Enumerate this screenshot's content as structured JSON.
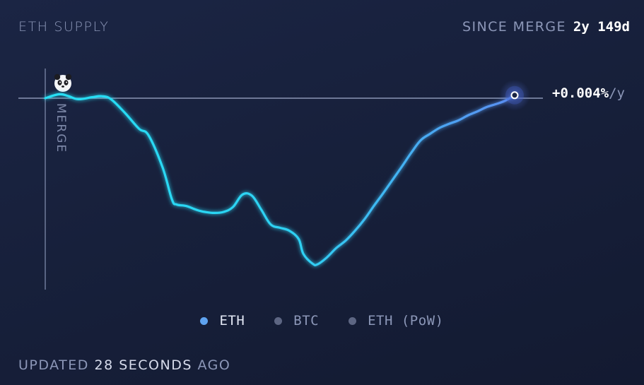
{
  "header": {
    "title": "ETH SUPPLY",
    "since_label": "SINCE MERGE",
    "since_value": "2y 149d"
  },
  "merge_label": "MERGE",
  "merge_icon": "panda-icon",
  "current_rate": "+0.004%",
  "current_rate_unit": "/y",
  "legend": [
    {
      "label": "ETH",
      "color": "#5fa3f0",
      "active": true
    },
    {
      "label": "BTC",
      "color": "#5d6683",
      "active": false
    },
    {
      "label": "ETH (PoW)",
      "color": "#5d6683",
      "active": false
    }
  ],
  "footer": {
    "updated_prefix": "UPDATED",
    "updated_value": "28 SECONDS",
    "updated_suffix": "AGO"
  },
  "colors": {
    "line_start": "#25e0f5",
    "line_end": "#5b8ef2",
    "background": "#17203b",
    "muted_text": "#8c97b8"
  },
  "chart_data": {
    "type": "line",
    "title": "ETH SUPPLY",
    "baseline_value": 0,
    "current_value_label": "+0.004%/y",
    "ylim": [
      -0.34,
      0.035
    ],
    "xlim": [
      0,
      1
    ],
    "x": [
      0,
      0.03,
      0.05,
      0.07,
      0.1,
      0.12,
      0.14,
      0.17,
      0.2,
      0.22,
      0.25,
      0.27,
      0.28,
      0.3,
      0.32,
      0.33,
      0.34,
      0.36,
      0.38,
      0.4,
      0.42,
      0.44,
      0.46,
      0.48,
      0.5,
      0.52,
      0.54,
      0.55,
      0.57,
      0.58,
      0.6,
      0.62,
      0.64,
      0.66,
      0.68,
      0.7,
      0.72,
      0.74,
      0.76,
      0.78,
      0.8,
      0.82,
      0.84,
      0.86,
      0.88,
      0.9,
      0.92,
      0.94,
      0.96,
      0.98,
      1.0
    ],
    "y": [
      0.0,
      0.008,
      0.004,
      -0.002,
      0.002,
      0.004,
      -0.002,
      -0.03,
      -0.062,
      -0.075,
      -0.14,
      -0.205,
      -0.215,
      -0.218,
      -0.225,
      -0.228,
      -0.23,
      -0.232,
      -0.23,
      -0.22,
      -0.195,
      -0.197,
      -0.225,
      -0.255,
      -0.262,
      -0.268,
      -0.285,
      -0.315,
      -0.335,
      -0.336,
      -0.322,
      -0.303,
      -0.288,
      -0.268,
      -0.245,
      -0.218,
      -0.192,
      -0.165,
      -0.138,
      -0.11,
      -0.085,
      -0.072,
      -0.06,
      -0.052,
      -0.045,
      -0.035,
      -0.027,
      -0.018,
      -0.012,
      -0.005,
      0.006
    ]
  }
}
